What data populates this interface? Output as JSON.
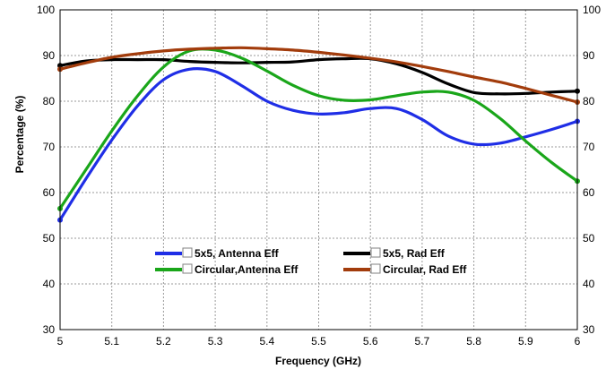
{
  "chart_data": {
    "type": "line",
    "xlabel": "Frequency (GHz)",
    "ylabel": "Percentage (%)",
    "xlim": [
      5,
      6
    ],
    "ylim": [
      30,
      100
    ],
    "x_ticks": [
      "5",
      "5.1",
      "5.2",
      "5.3",
      "5.4",
      "5.5",
      "5.6",
      "5.7",
      "5.8",
      "5.9",
      "6"
    ],
    "y_ticks": [
      "30",
      "40",
      "50",
      "60",
      "70",
      "80",
      "90",
      "100"
    ],
    "grid": true,
    "legend_placement": "bottom-center",
    "series": [
      {
        "name": "5x5, Antenna Eff",
        "color": "#1f2ee6",
        "x": [
          5,
          5.05,
          5.1,
          5.15,
          5.2,
          5.25,
          5.3,
          5.35,
          5.4,
          5.45,
          5.5,
          5.55,
          5.6,
          5.65,
          5.7,
          5.75,
          5.8,
          5.85,
          5.9,
          5.95,
          6
        ],
        "y": [
          54,
          63,
          71.5,
          79,
          84.7,
          87,
          86.5,
          83.5,
          80,
          78,
          77.2,
          77.5,
          78.4,
          78.4,
          76,
          72.4,
          70.6,
          70.8,
          72.2,
          73.8,
          75.6
        ]
      },
      {
        "name": "5x5, Rad Eff",
        "color": "#000000",
        "x": [
          5,
          5.05,
          5.1,
          5.15,
          5.2,
          5.25,
          5.3,
          5.35,
          5.4,
          5.45,
          5.5,
          5.55,
          5.6,
          5.65,
          5.7,
          5.75,
          5.8,
          5.85,
          5.9,
          5.95,
          6
        ],
        "y": [
          87.8,
          88.8,
          89.1,
          89.1,
          89.1,
          88.7,
          88.5,
          88.4,
          88.5,
          88.6,
          89.1,
          89.3,
          89.3,
          88.2,
          86.3,
          83.8,
          81.9,
          81.6,
          81.7,
          82,
          82.2
        ]
      },
      {
        "name": "Circular,Antenna Eff",
        "color": "#1aa61a",
        "x": [
          5,
          5.05,
          5.1,
          5.15,
          5.2,
          5.25,
          5.3,
          5.35,
          5.4,
          5.45,
          5.5,
          5.55,
          5.6,
          5.65,
          5.7,
          5.75,
          5.8,
          5.85,
          5.9,
          5.95,
          6
        ],
        "y": [
          56.5,
          65,
          73.5,
          81.2,
          87.5,
          91,
          91.2,
          89.5,
          86.6,
          83.5,
          81.2,
          80.2,
          80.3,
          81.2,
          82,
          82,
          80.2,
          76.3,
          71.3,
          66.6,
          62.5
        ]
      },
      {
        "name": "Circular, Rad Eff",
        "color": "#a23c0c",
        "x": [
          5,
          5.05,
          5.1,
          5.15,
          5.2,
          5.25,
          5.3,
          5.35,
          5.4,
          5.45,
          5.5,
          5.55,
          5.6,
          5.65,
          5.7,
          5.75,
          5.8,
          5.85,
          5.9,
          5.95,
          6
        ],
        "y": [
          87,
          88.4,
          89.6,
          90.4,
          91,
          91.4,
          91.6,
          91.7,
          91.5,
          91.2,
          90.7,
          90.1,
          89.4,
          88.6,
          87.6,
          86.5,
          85.3,
          84.2,
          82.8,
          81.3,
          79.8
        ]
      }
    ]
  }
}
